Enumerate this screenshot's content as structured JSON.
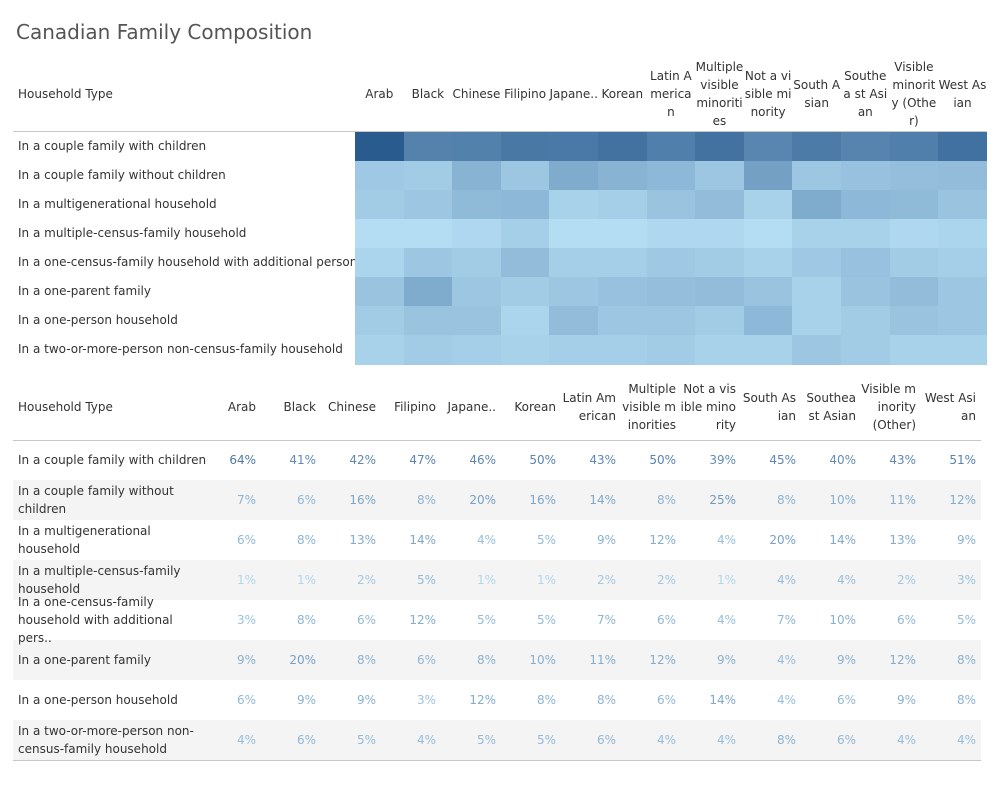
{
  "title": "Canadian Family Composition",
  "row_header": "Household Type",
  "colors": {
    "low": "#b4dcf3",
    "high": "#2a5b8f"
  },
  "heatmap_headers": [
    "Arab",
    "Black",
    "Chinese",
    "Filipino",
    "Japane..",
    "Korean",
    "Latin A merican",
    "Multiple visible minoriti es",
    "Not a vi sible mi nority",
    "South Asian",
    "Southea st Asian",
    "Visible minorit y (Othe r)",
    "West Asian"
  ],
  "heatmap_rows": [
    "In a couple family with children",
    "In a couple family without children",
    "In a multigenerational household",
    "In a multiple-census-family household",
    "In a one-census-family household with additional persons",
    "In a one-parent family",
    "In a one-person household",
    "In a two-or-more-person non-census-family household"
  ],
  "table_headers": [
    "Arab",
    "Black",
    "Chinese",
    "Filipino",
    "Japane..",
    "Korean",
    "Latin Am erican",
    "Multiple visible m inorities",
    "Not a visible minority",
    "South Asian",
    "Southea st Asian",
    "Visible minority (Other)",
    "West Asian"
  ],
  "table_rows": [
    "In a couple family with children",
    "In a couple family without children",
    "In a multigenerational household",
    "In a multiple-census-family household",
    "In a one-census-family household with additional pers..",
    "In a one-parent family",
    "In a one-person household",
    "In a two-or-more-person non-census-family household"
  ],
  "chart_data": {
    "type": "heatmap",
    "title": "Canadian Family Composition",
    "row_axis_label": "Household Type",
    "columns": [
      "Arab",
      "Black",
      "Chinese",
      "Filipino",
      "Japanese",
      "Korean",
      "Latin American",
      "Multiple visible minorities",
      "Not a visible minority",
      "South Asian",
      "Southeast Asian",
      "Visible minority (Other)",
      "West Asian"
    ],
    "rows": [
      "In a couple family with children",
      "In a couple family without children",
      "In a multigenerational household",
      "In a multiple-census-family household",
      "In a one-census-family household with additional persons",
      "In a one-parent family",
      "In a one-person household",
      "In a two-or-more-person non-census-family household"
    ],
    "values": [
      [
        64,
        41,
        42,
        47,
        46,
        50,
        43,
        50,
        39,
        45,
        40,
        43,
        51
      ],
      [
        7,
        6,
        16,
        8,
        20,
        16,
        14,
        8,
        25,
        8,
        10,
        11,
        12
      ],
      [
        6,
        8,
        13,
        14,
        4,
        5,
        9,
        12,
        4,
        20,
        14,
        13,
        9
      ],
      [
        1,
        1,
        2,
        5,
        1,
        1,
        2,
        2,
        1,
        4,
        4,
        2,
        3
      ],
      [
        3,
        8,
        6,
        12,
        5,
        5,
        7,
        6,
        4,
        7,
        10,
        6,
        5
      ],
      [
        9,
        20,
        8,
        6,
        8,
        10,
        11,
        12,
        9,
        4,
        9,
        12,
        8
      ],
      [
        6,
        9,
        9,
        3,
        12,
        8,
        8,
        6,
        14,
        4,
        6,
        9,
        8
      ],
      [
        4,
        6,
        5,
        4,
        5,
        5,
        6,
        4,
        4,
        8,
        6,
        4,
        4
      ]
    ],
    "unit": "%",
    "value_range": [
      1,
      64
    ]
  }
}
